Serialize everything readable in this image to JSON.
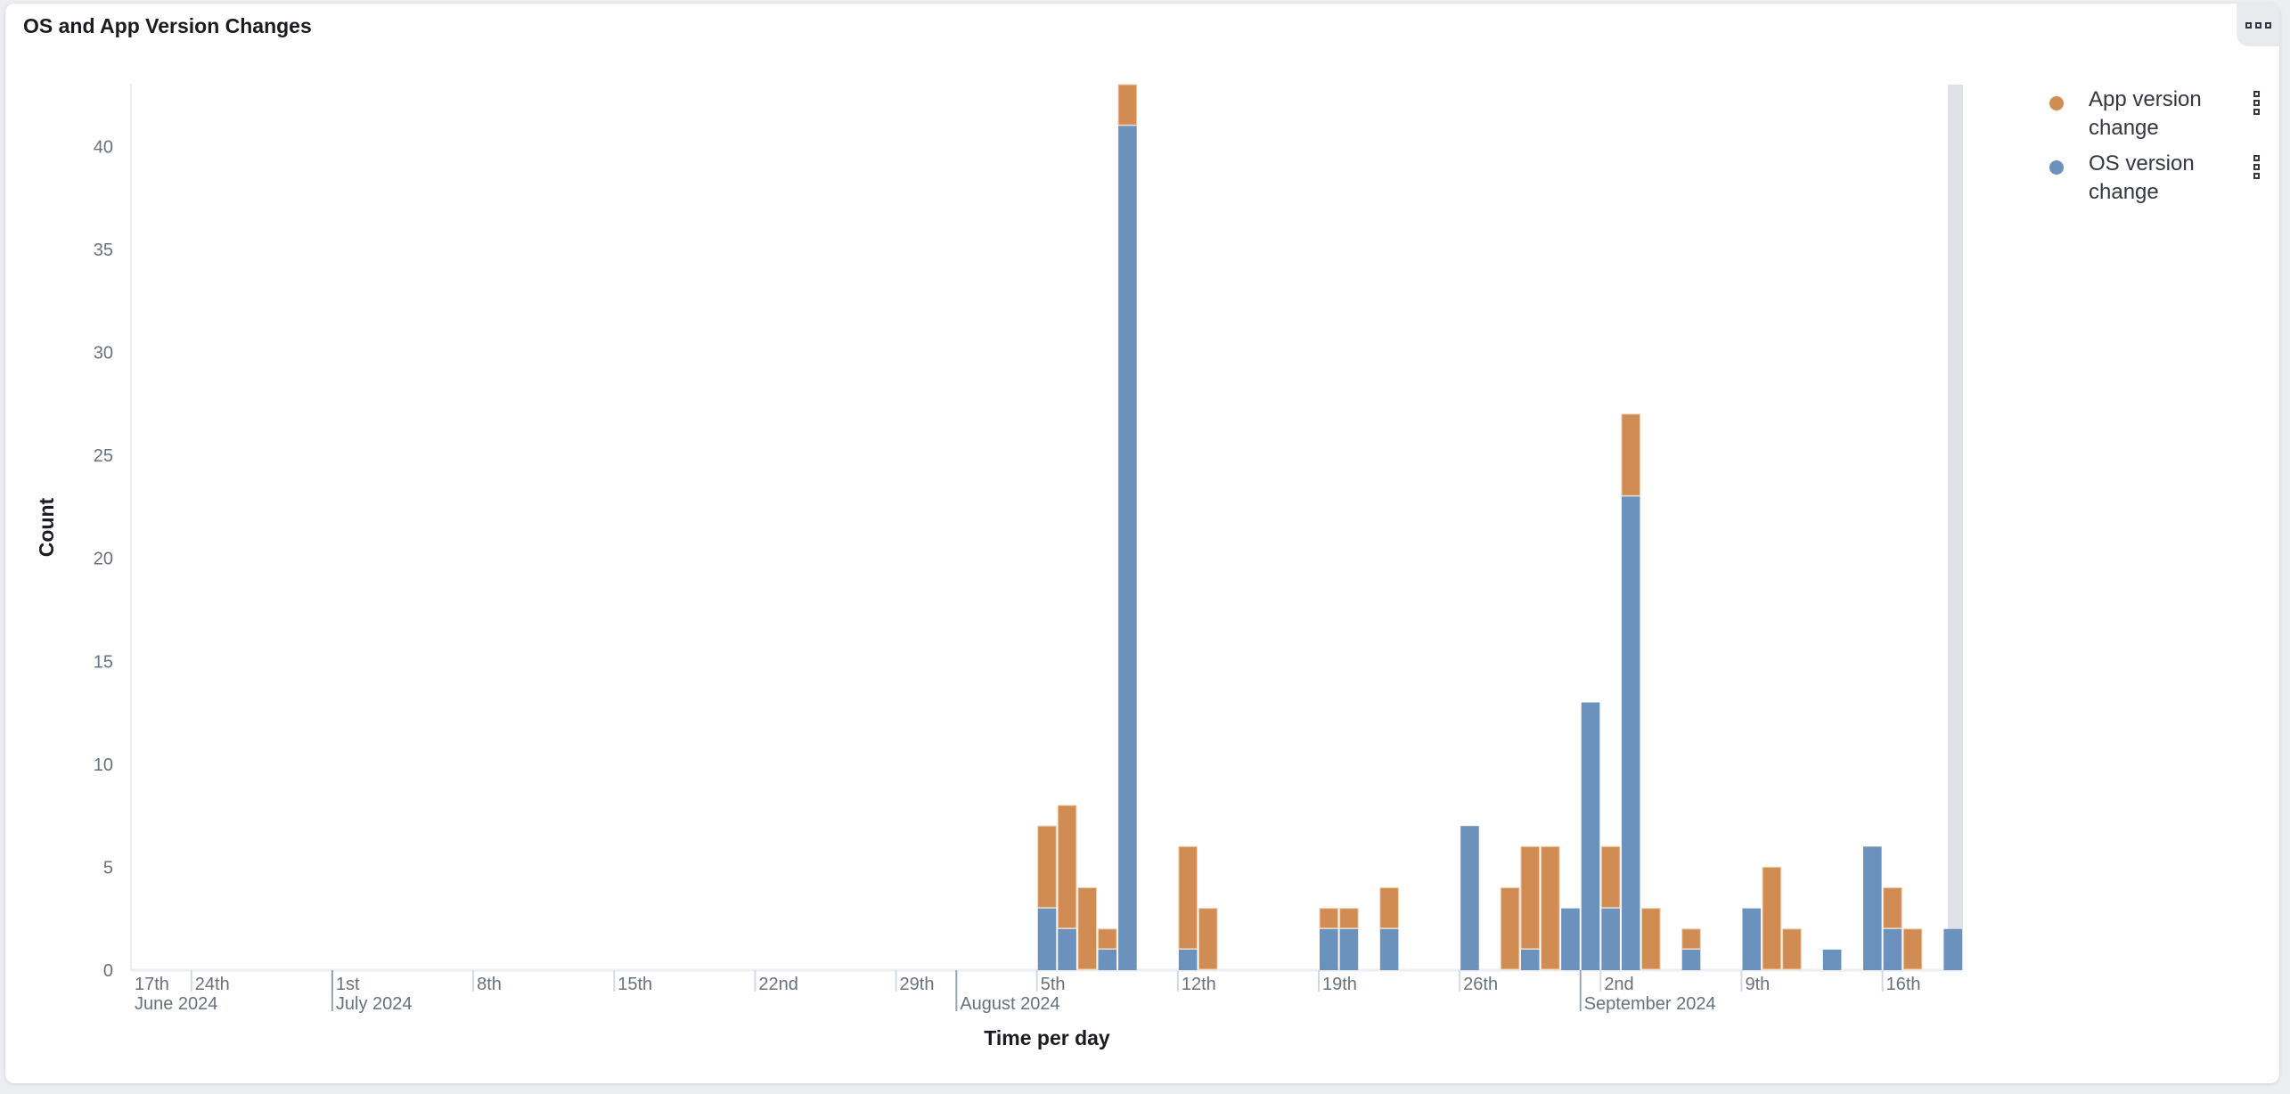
{
  "panel": {
    "title": "OS and App Version Changes"
  },
  "colors": {
    "app": "#d08c52",
    "os": "#6a92bd",
    "hover": "#e0e1e5",
    "grid": "#edeef2"
  },
  "legend": [
    {
      "label": "App version change",
      "color": "#d08c52",
      "icon": "legend-dot"
    },
    {
      "label": "OS version change",
      "color": "#6a92bd",
      "icon": "legend-dot"
    }
  ],
  "chart_data": {
    "type": "bar",
    "stacked": true,
    "title": "OS and App Version Changes",
    "xlabel": "Time per day",
    "ylabel": "Count",
    "xlim": [
      "2024-06-21",
      "2024-09-20"
    ],
    "ylim": [
      0,
      43
    ],
    "yticks": [
      0,
      5,
      10,
      15,
      20,
      25,
      30,
      35,
      40
    ],
    "xticks": [
      {
        "date": "2024-06-17",
        "label": "17th",
        "sub": "June 2024"
      },
      {
        "date": "2024-06-24",
        "label": "24th",
        "sub": ""
      },
      {
        "date": "2024-07-01",
        "label": "1st",
        "sub": "July 2024"
      },
      {
        "date": "2024-07-08",
        "label": "8th",
        "sub": ""
      },
      {
        "date": "2024-07-15",
        "label": "15th",
        "sub": ""
      },
      {
        "date": "2024-07-22",
        "label": "22nd",
        "sub": ""
      },
      {
        "date": "2024-07-29",
        "label": "29th",
        "sub": ""
      },
      {
        "date": "2024-08-05",
        "label": "5th",
        "sub": ""
      },
      {
        "date": "2024-08-12",
        "label": "12th",
        "sub": ""
      },
      {
        "date": "2024-08-19",
        "label": "19th",
        "sub": ""
      },
      {
        "date": "2024-08-26",
        "label": "26th",
        "sub": ""
      },
      {
        "date": "2024-09-02",
        "label": "2nd",
        "sub": ""
      },
      {
        "date": "2024-09-09",
        "label": "9th",
        "sub": ""
      },
      {
        "date": "2024-09-16",
        "label": "16th",
        "sub": ""
      }
    ],
    "month_markers": [
      {
        "date": "2024-08-01",
        "label": "August 2024"
      },
      {
        "date": "2024-09-01",
        "label": "September 2024"
      }
    ],
    "grid": false,
    "legend_position": "top-right",
    "hover_date": "2024-09-19",
    "dates": [
      "2024-08-05",
      "2024-08-06",
      "2024-08-07",
      "2024-08-08",
      "2024-08-09",
      "2024-08-12",
      "2024-08-13",
      "2024-08-19",
      "2024-08-20",
      "2024-08-22",
      "2024-08-26",
      "2024-08-28",
      "2024-08-29",
      "2024-08-30",
      "2024-08-31",
      "2024-09-01",
      "2024-09-02",
      "2024-09-03",
      "2024-09-04",
      "2024-09-06",
      "2024-09-09",
      "2024-09-10",
      "2024-09-11",
      "2024-09-13",
      "2024-09-15",
      "2024-09-16",
      "2024-09-17",
      "2024-09-19"
    ],
    "series": [
      {
        "name": "OS version change",
        "values": [
          3,
          2,
          0,
          1,
          41,
          1,
          0,
          2,
          2,
          2,
          7,
          0,
          1,
          0,
          3,
          13,
          3,
          23,
          0,
          1,
          3,
          0,
          0,
          1,
          6,
          2,
          0,
          2
        ]
      },
      {
        "name": "App version change",
        "values": [
          4,
          6,
          4,
          1,
          2,
          5,
          3,
          1,
          1,
          2,
          0,
          4,
          5,
          6,
          0,
          0,
          3,
          4,
          3,
          1,
          0,
          5,
          2,
          0,
          0,
          2,
          2,
          0
        ]
      }
    ]
  }
}
